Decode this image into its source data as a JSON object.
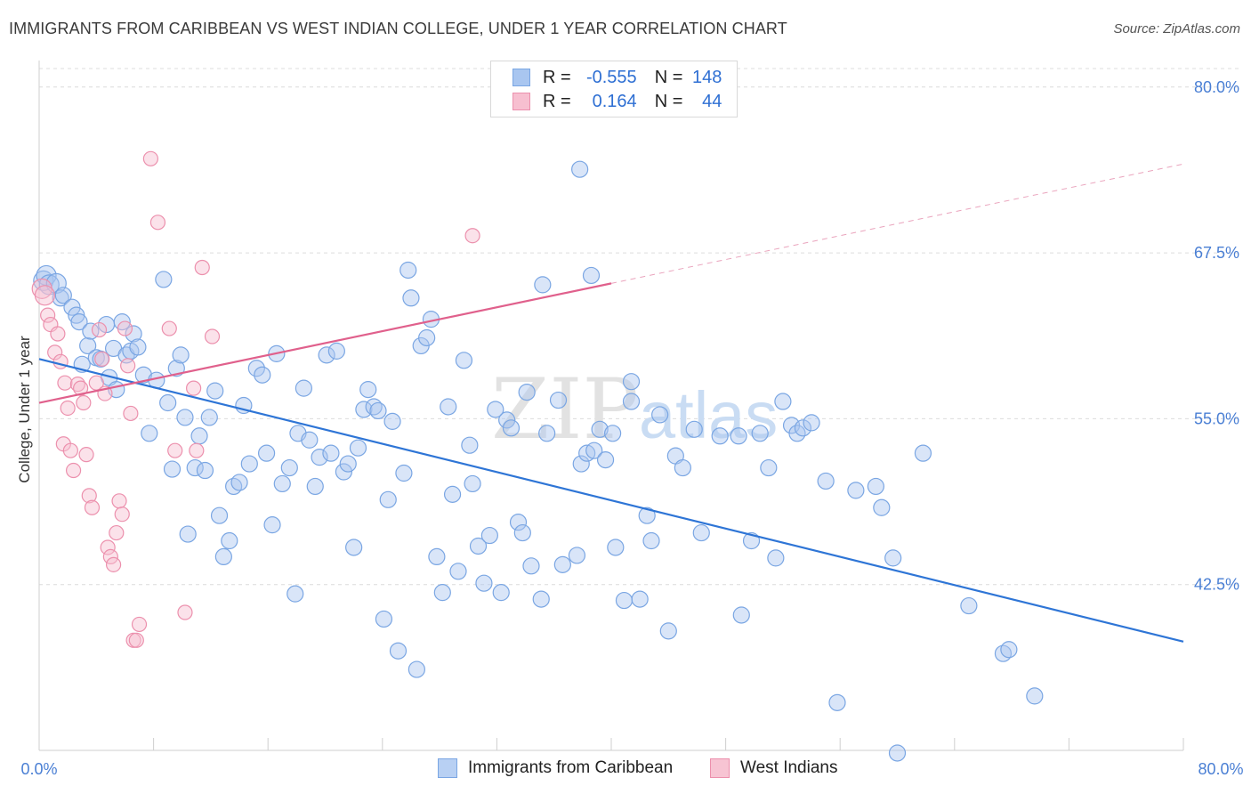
{
  "title": "IMMIGRANTS FROM CARIBBEAN VS WEST INDIAN COLLEGE, UNDER 1 YEAR CORRELATION CHART",
  "source": "Source: ZipAtlas.com",
  "watermark": {
    "zip": "ZIP",
    "atlas": "atlas"
  },
  "legend": {
    "r_label": "R =",
    "n_label": "N =",
    "rows": [
      {
        "r": "-0.555",
        "n": "148",
        "color": "#a9c6f0",
        "border": "#7aa6e3"
      },
      {
        "r": "0.164",
        "n": "44",
        "color": "#f7bfd0",
        "border": "#ec90ad"
      }
    ]
  },
  "bottom_legend": [
    {
      "name": "Immigrants from Caribbean",
      "color": "#b8d0f3",
      "border": "#7aa6e3"
    },
    {
      "name": "West Indians",
      "color": "#f7c4d3",
      "border": "#ec90ad"
    }
  ],
  "chart_data": {
    "type": "scatter",
    "title": "IMMIGRANTS FROM CARIBBEAN VS WEST INDIAN COLLEGE, UNDER 1 YEAR CORRELATION CHART",
    "xlabel": "",
    "ylabel": "College, Under 1 year",
    "xlim": [
      0,
      80
    ],
    "ylim": [
      30,
      82
    ],
    "x_tick_labels": [
      "0.0%",
      "80.0%"
    ],
    "y_ticks": [
      42.5,
      55.0,
      67.5,
      80.0
    ],
    "y_tick_labels": [
      "42.5%",
      "55.0%",
      "67.5%",
      "80.0%"
    ],
    "grid": true,
    "colors": {
      "blue": "#2e75d6",
      "pink": "#e0608c",
      "tick_text": "#4a7fd4"
    },
    "series": [
      {
        "name": "Immigrants from Caribbean",
        "trend": {
          "x0": 0,
          "y0": 59.5,
          "x1": 80,
          "y1": 38.2
        },
        "points": [
          [
            0.3,
            65.4
          ],
          [
            0.5,
            65.8
          ],
          [
            0.7,
            65.1
          ],
          [
            1.2,
            65.2
          ],
          [
            1.5,
            64.1
          ],
          [
            1.7,
            64.3
          ],
          [
            2.3,
            63.4
          ],
          [
            2.6,
            62.8
          ],
          [
            2.8,
            62.3
          ],
          [
            3.0,
            59.1
          ],
          [
            3.4,
            60.5
          ],
          [
            3.6,
            61.6
          ],
          [
            4.0,
            59.6
          ],
          [
            4.3,
            59.5
          ],
          [
            4.7,
            62.1
          ],
          [
            4.9,
            58.1
          ],
          [
            5.2,
            60.3
          ],
          [
            5.4,
            57.2
          ],
          [
            5.8,
            62.3
          ],
          [
            6.1,
            59.8
          ],
          [
            6.4,
            60.1
          ],
          [
            6.6,
            61.4
          ],
          [
            6.9,
            60.4
          ],
          [
            7.3,
            58.3
          ],
          [
            7.7,
            53.9
          ],
          [
            8.2,
            57.9
          ],
          [
            8.7,
            65.5
          ],
          [
            9.0,
            56.2
          ],
          [
            9.3,
            51.2
          ],
          [
            9.6,
            58.8
          ],
          [
            9.9,
            59.8
          ],
          [
            10.2,
            55.1
          ],
          [
            10.4,
            46.3
          ],
          [
            10.9,
            51.3
          ],
          [
            11.2,
            53.7
          ],
          [
            11.6,
            51.1
          ],
          [
            11.9,
            55.1
          ],
          [
            12.3,
            57.1
          ],
          [
            12.6,
            47.7
          ],
          [
            12.9,
            44.6
          ],
          [
            13.3,
            45.8
          ],
          [
            13.6,
            49.9
          ],
          [
            14.0,
            50.2
          ],
          [
            14.3,
            56.0
          ],
          [
            14.7,
            51.6
          ],
          [
            15.2,
            58.8
          ],
          [
            15.6,
            58.3
          ],
          [
            15.9,
            52.4
          ],
          [
            16.3,
            47.0
          ],
          [
            16.6,
            59.9
          ],
          [
            17.0,
            50.1
          ],
          [
            17.5,
            51.3
          ],
          [
            17.9,
            41.8
          ],
          [
            18.1,
            53.9
          ],
          [
            18.5,
            57.3
          ],
          [
            18.9,
            53.4
          ],
          [
            19.3,
            49.9
          ],
          [
            19.6,
            52.1
          ],
          [
            20.1,
            59.8
          ],
          [
            20.4,
            52.4
          ],
          [
            20.8,
            60.1
          ],
          [
            21.3,
            51.0
          ],
          [
            21.6,
            51.6
          ],
          [
            22.0,
            45.3
          ],
          [
            22.3,
            52.8
          ],
          [
            22.7,
            55.7
          ],
          [
            23.0,
            57.2
          ],
          [
            23.4,
            55.9
          ],
          [
            23.7,
            55.6
          ],
          [
            24.1,
            39.9
          ],
          [
            24.4,
            48.9
          ],
          [
            24.7,
            54.8
          ],
          [
            25.1,
            37.5
          ],
          [
            25.5,
            50.9
          ],
          [
            26.0,
            64.1
          ],
          [
            25.8,
            66.2
          ],
          [
            26.4,
            36.1
          ],
          [
            26.7,
            60.5
          ],
          [
            27.1,
            61.1
          ],
          [
            27.4,
            62.5
          ],
          [
            27.8,
            44.6
          ],
          [
            28.2,
            41.9
          ],
          [
            28.6,
            55.9
          ],
          [
            28.9,
            49.3
          ],
          [
            29.3,
            43.5
          ],
          [
            29.7,
            59.4
          ],
          [
            30.1,
            53.0
          ],
          [
            30.3,
            50.1
          ],
          [
            30.7,
            45.4
          ],
          [
            31.1,
            42.6
          ],
          [
            31.5,
            46.2
          ],
          [
            31.9,
            55.7
          ],
          [
            32.3,
            41.9
          ],
          [
            32.7,
            54.9
          ],
          [
            33.0,
            54.3
          ],
          [
            33.5,
            47.2
          ],
          [
            33.8,
            46.4
          ],
          [
            34.1,
            57.0
          ],
          [
            34.4,
            43.9
          ],
          [
            35.1,
            41.4
          ],
          [
            35.5,
            53.9
          ],
          [
            36.3,
            56.4
          ],
          [
            36.6,
            44.0
          ],
          [
            37.6,
            44.7
          ],
          [
            37.9,
            51.6
          ],
          [
            38.3,
            52.4
          ],
          [
            38.8,
            52.6
          ],
          [
            39.2,
            54.2
          ],
          [
            39.6,
            51.9
          ],
          [
            40.1,
            53.9
          ],
          [
            37.8,
            73.8
          ],
          [
            38.6,
            65.8
          ],
          [
            40.3,
            45.3
          ],
          [
            40.9,
            41.3
          ],
          [
            41.4,
            57.8
          ],
          [
            42.0,
            41.4
          ],
          [
            42.5,
            47.7
          ],
          [
            42.8,
            45.8
          ],
          [
            43.4,
            55.3
          ],
          [
            44.0,
            39.0
          ],
          [
            44.5,
            52.2
          ],
          [
            45.0,
            51.3
          ],
          [
            45.8,
            54.2
          ],
          [
            46.3,
            46.4
          ],
          [
            47.6,
            53.7
          ],
          [
            48.9,
            53.7
          ],
          [
            49.1,
            40.2
          ],
          [
            49.8,
            45.8
          ],
          [
            50.4,
            53.9
          ],
          [
            51.0,
            51.3
          ],
          [
            51.5,
            44.5
          ],
          [
            52.0,
            56.3
          ],
          [
            52.6,
            54.5
          ],
          [
            53.0,
            53.9
          ],
          [
            53.4,
            54.3
          ],
          [
            54.0,
            54.7
          ],
          [
            55.0,
            50.3
          ],
          [
            55.8,
            33.6
          ],
          [
            57.1,
            49.6
          ],
          [
            58.5,
            49.9
          ],
          [
            58.9,
            48.3
          ],
          [
            59.7,
            44.5
          ],
          [
            61.8,
            52.4
          ],
          [
            65.0,
            40.9
          ],
          [
            67.4,
            37.3
          ],
          [
            67.8,
            37.6
          ],
          [
            69.6,
            34.1
          ],
          [
            60.0,
            29.8
          ],
          [
            35.2,
            65.1
          ],
          [
            41.4,
            56.3
          ]
        ]
      },
      {
        "name": "West Indians",
        "trend": {
          "x0": 0,
          "y0": 56.2,
          "x1": 40,
          "y1": 65.2,
          "x_ext": 80,
          "y_ext": 74.2
        },
        "points": [
          [
            0.2,
            64.8
          ],
          [
            0.4,
            64.3
          ],
          [
            0.6,
            62.8
          ],
          [
            0.8,
            62.1
          ],
          [
            1.1,
            60.0
          ],
          [
            1.3,
            61.4
          ],
          [
            1.5,
            59.3
          ],
          [
            1.8,
            57.7
          ],
          [
            2.0,
            55.8
          ],
          [
            1.7,
            53.1
          ],
          [
            2.2,
            52.6
          ],
          [
            2.4,
            51.1
          ],
          [
            2.7,
            57.6
          ],
          [
            2.9,
            57.3
          ],
          [
            3.1,
            56.2
          ],
          [
            3.3,
            52.3
          ],
          [
            3.5,
            49.2
          ],
          [
            3.7,
            48.3
          ],
          [
            4.0,
            57.7
          ],
          [
            4.2,
            61.7
          ],
          [
            4.4,
            59.5
          ],
          [
            4.6,
            56.9
          ],
          [
            4.8,
            45.3
          ],
          [
            5.0,
            44.6
          ],
          [
            5.2,
            44.0
          ],
          [
            5.4,
            46.4
          ],
          [
            5.6,
            48.8
          ],
          [
            5.8,
            47.8
          ],
          [
            6.0,
            61.8
          ],
          [
            6.2,
            59.0
          ],
          [
            6.4,
            55.4
          ],
          [
            6.6,
            38.3
          ],
          [
            6.8,
            38.3
          ],
          [
            7.0,
            39.5
          ],
          [
            7.8,
            74.6
          ],
          [
            8.3,
            69.8
          ],
          [
            9.1,
            61.8
          ],
          [
            9.5,
            52.6
          ],
          [
            10.2,
            40.4
          ],
          [
            10.8,
            57.3
          ],
          [
            11.4,
            66.4
          ],
          [
            11.0,
            52.6
          ],
          [
            12.1,
            61.2
          ],
          [
            30.3,
            68.8
          ]
        ]
      }
    ]
  }
}
